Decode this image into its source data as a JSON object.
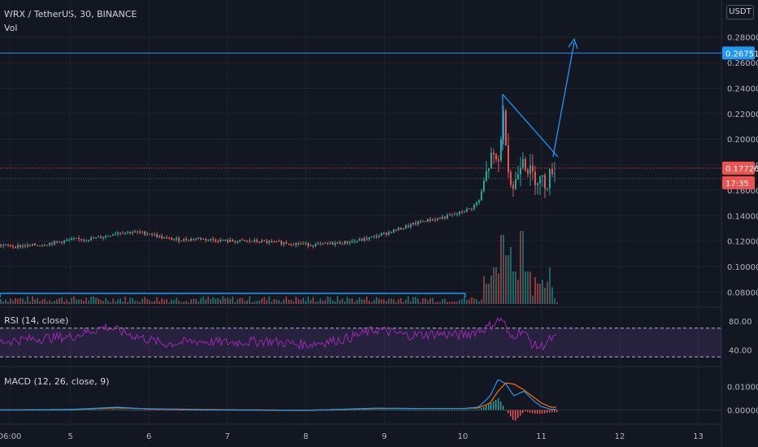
{
  "header": {
    "symbol_line": "WRX / TetherUS, 30, BINANCE",
    "volume_label": "Vol",
    "currency": "USDT"
  },
  "rsi": {
    "label": "RSI (14, close)",
    "upper_band": 70,
    "lower_band": 30,
    "ticks": [
      "80.00",
      "40.00"
    ]
  },
  "macd": {
    "label": "MACD (12, 26, close, 9)",
    "ticks": [
      "0.01000",
      "0.00000"
    ]
  },
  "price_badges": {
    "target": "0.26751",
    "last": "0.17726",
    "countdown": "17:35"
  },
  "colors": {
    "background": "#131722",
    "up": "#26a69a",
    "down": "#ef5350",
    "drawing": "#2196f3",
    "rsi_line": "#9c27b0",
    "macd_line": "#2196f3",
    "signal_line": "#ff6d00"
  },
  "chart_data": {
    "type": "candlestick",
    "x_ticks": [
      "06:00",
      "5",
      "6",
      "7",
      "8",
      "9",
      "10",
      "11",
      "12",
      "13"
    ],
    "y_ticks": [
      "0.28000",
      "0.26000",
      "0.24000",
      "0.22000",
      "0.20000",
      "0.18000",
      "0.16000",
      "0.14000",
      "0.12000",
      "0.10000",
      "0.08000"
    ],
    "y_range": [
      0.072,
      0.29
    ],
    "price_path": [
      [
        4.0,
        0.117
      ],
      [
        4.3,
        0.116
      ],
      [
        4.6,
        0.117
      ],
      [
        4.8,
        0.119
      ],
      [
        5.0,
        0.121
      ],
      [
        5.3,
        0.122
      ],
      [
        5.45,
        0.124
      ],
      [
        5.6,
        0.127
      ],
      [
        5.8,
        0.127
      ],
      [
        6.0,
        0.126
      ],
      [
        6.2,
        0.122
      ],
      [
        6.4,
        0.121
      ],
      [
        6.6,
        0.122
      ],
      [
        6.8,
        0.121
      ],
      [
        7.0,
        0.12
      ],
      [
        7.3,
        0.12
      ],
      [
        7.6,
        0.119
      ],
      [
        7.9,
        0.118
      ],
      [
        8.1,
        0.117
      ],
      [
        8.3,
        0.118
      ],
      [
        8.5,
        0.119
      ],
      [
        8.7,
        0.121
      ],
      [
        8.9,
        0.124
      ],
      [
        9.1,
        0.128
      ],
      [
        9.3,
        0.132
      ],
      [
        9.5,
        0.136
      ],
      [
        9.7,
        0.138
      ],
      [
        9.9,
        0.141
      ],
      [
        10.1,
        0.146
      ],
      [
        10.2,
        0.152
      ],
      [
        10.3,
        0.175
      ],
      [
        10.35,
        0.185
      ],
      [
        10.45,
        0.182
      ],
      [
        10.5,
        0.222
      ],
      [
        10.55,
        0.195
      ],
      [
        10.58,
        0.172
      ],
      [
        10.62,
        0.16
      ],
      [
        10.68,
        0.17
      ],
      [
        10.75,
        0.19
      ],
      [
        10.8,
        0.178
      ],
      [
        10.9,
        0.17
      ],
      [
        11.0,
        0.168
      ],
      [
        11.05,
        0.164
      ],
      [
        11.1,
        0.172
      ],
      [
        11.12,
        0.177
      ]
    ],
    "volume_spikes": [
      [
        10.3,
        0.25
      ],
      [
        10.35,
        0.35
      ],
      [
        10.4,
        0.45
      ],
      [
        10.45,
        0.3
      ],
      [
        10.5,
        0.85
      ],
      [
        10.55,
        0.6
      ],
      [
        10.6,
        0.7
      ],
      [
        10.65,
        0.4
      ],
      [
        10.7,
        0.3
      ],
      [
        10.75,
        0.9
      ],
      [
        10.8,
        0.4
      ],
      [
        10.85,
        0.2
      ],
      [
        10.95,
        0.25
      ],
      [
        11.0,
        0.15
      ],
      [
        11.05,
        0.2
      ],
      [
        11.1,
        0.45
      ]
    ],
    "rsi_path": [
      [
        4.0,
        50
      ],
      [
        4.5,
        55
      ],
      [
        5.0,
        58
      ],
      [
        5.45,
        72
      ],
      [
        5.8,
        60
      ],
      [
        6.2,
        48
      ],
      [
        6.6,
        52
      ],
      [
        7.0,
        50
      ],
      [
        7.5,
        52
      ],
      [
        8.0,
        47
      ],
      [
        8.5,
        55
      ],
      [
        8.9,
        68
      ],
      [
        9.3,
        60
      ],
      [
        9.7,
        62
      ],
      [
        10.0,
        60
      ],
      [
        10.3,
        70
      ],
      [
        10.5,
        84
      ],
      [
        10.6,
        56
      ],
      [
        10.75,
        68
      ],
      [
        10.9,
        46
      ],
      [
        11.0,
        44
      ],
      [
        11.12,
        55
      ]
    ],
    "rsi_range": [
      20,
      90
    ],
    "macd_path": [
      [
        4.0,
        0.0
      ],
      [
        5.0,
        0.0002
      ],
      [
        5.6,
        0.0012
      ],
      [
        6.0,
        0.0004
      ],
      [
        7.0,
        0.0
      ],
      [
        8.0,
        -0.0002
      ],
      [
        8.9,
        0.0008
      ],
      [
        9.5,
        0.0006
      ],
      [
        10.0,
        0.0006
      ],
      [
        10.2,
        0.0012
      ],
      [
        10.35,
        0.006
      ],
      [
        10.45,
        0.013
      ],
      [
        10.55,
        0.011
      ],
      [
        10.65,
        0.006
      ],
      [
        10.78,
        0.008
      ],
      [
        10.9,
        0.004
      ],
      [
        11.0,
        0.0015
      ],
      [
        11.12,
        0.0003
      ]
    ],
    "signal_path": [
      [
        4.0,
        0.0
      ],
      [
        5.0,
        0.0002
      ],
      [
        5.6,
        0.0009
      ],
      [
        6.0,
        0.0005
      ],
      [
        7.0,
        0.0001
      ],
      [
        8.0,
        -0.0001
      ],
      [
        8.9,
        0.0006
      ],
      [
        9.5,
        0.0006
      ],
      [
        10.0,
        0.0006
      ],
      [
        10.2,
        0.0009
      ],
      [
        10.35,
        0.003
      ],
      [
        10.45,
        0.008
      ],
      [
        10.55,
        0.0115
      ],
      [
        10.65,
        0.011
      ],
      [
        10.78,
        0.0085
      ],
      [
        10.9,
        0.0055
      ],
      [
        11.0,
        0.003
      ],
      [
        11.12,
        0.0012
      ]
    ],
    "macd_range": [
      -0.005,
      0.016
    ]
  }
}
